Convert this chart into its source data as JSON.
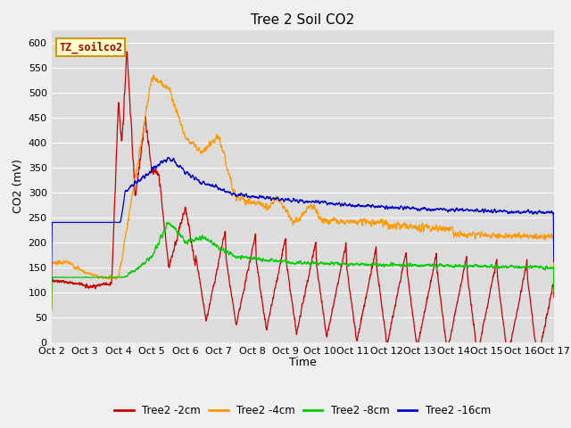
{
  "title": "Tree 2 Soil CO2",
  "xlabel": "Time",
  "ylabel": "CO2 (mV)",
  "ylim": [
    0,
    625
  ],
  "yticks": [
    0,
    50,
    100,
    150,
    200,
    250,
    300,
    350,
    400,
    450,
    500,
    550,
    600
  ],
  "x_labels": [
    "Oct 2",
    "Oct 3",
    "Oct 4",
    "Oct 5",
    "Oct 6",
    "Oct 7",
    "Oct 8",
    "Oct 9",
    "Oct 10",
    "Oct 11",
    "Oct 12",
    "Oct 13",
    "Oct 14",
    "Oct 15",
    "Oct 16",
    "Oct 17"
  ],
  "colors": {
    "2cm": "#cc0000",
    "4cm": "#ff9900",
    "8cm": "#00cc00",
    "16cm": "#0000cc"
  },
  "legend_labels": [
    "Tree2 -2cm",
    "Tree2 -4cm",
    "Tree2 -8cm",
    "Tree2 -16cm"
  ],
  "box_label": "TZ_soilco2",
  "box_facecolor": "#ffffcc",
  "box_edgecolor": "#cc9900",
  "background_color": "#dcdcdc",
  "plot_bg_color": "#dcdcdc",
  "fig_bg_color": "#f0f0f0",
  "grid_color": "#ffffff",
  "title_fontsize": 11,
  "axis_label_fontsize": 9,
  "tick_fontsize": 8
}
